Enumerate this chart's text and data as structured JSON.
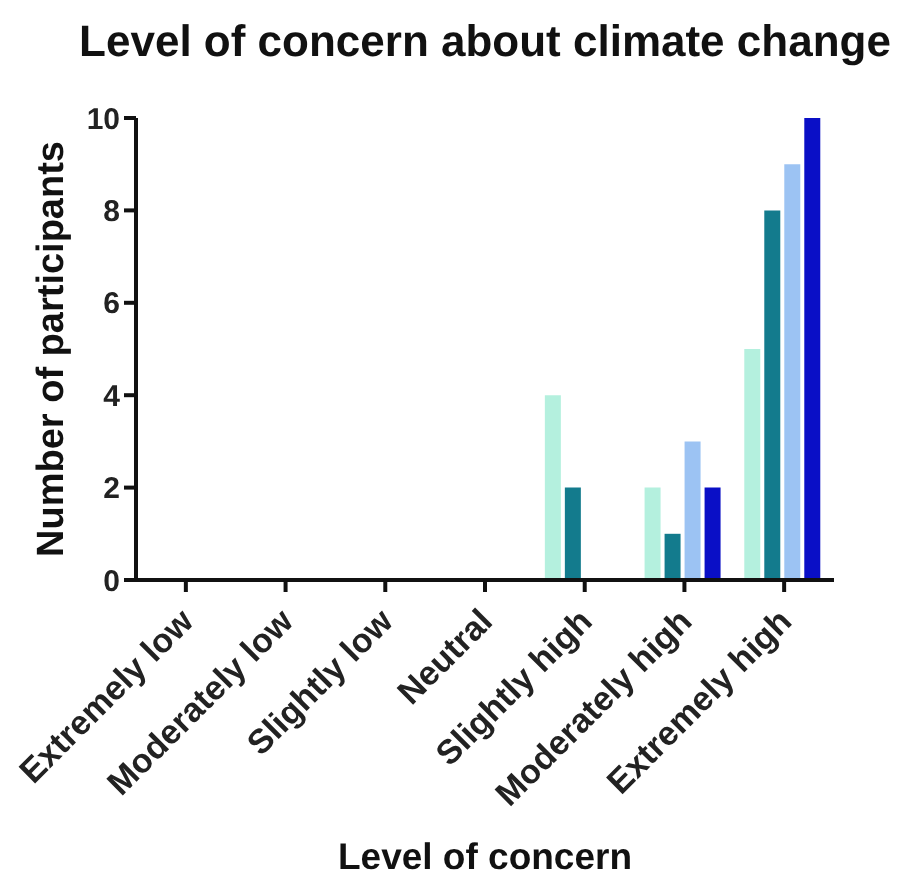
{
  "chart_data": {
    "type": "bar",
    "title": "Level of concern about climate change",
    "xlabel": "Level of concern",
    "ylabel": "Number of participants",
    "categories": [
      "Extremely low",
      "Moderately low",
      "Slightly low",
      "Neutral",
      "Slightly high",
      "Moderately high",
      "Extremely high"
    ],
    "series": [
      {
        "color": "#b4f0de",
        "values": [
          0,
          0,
          0,
          0,
          4,
          2,
          5
        ]
      },
      {
        "color": "#137b8d",
        "values": [
          0,
          0,
          0,
          0,
          2,
          1,
          8
        ]
      },
      {
        "color": "#9cc3f3",
        "values": [
          0,
          0,
          0,
          0,
          0,
          3,
          9
        ]
      },
      {
        "color": "#0a0fc6",
        "values": [
          0,
          0,
          0,
          0,
          0,
          2,
          10
        ]
      }
    ],
    "ylim": [
      0,
      10
    ],
    "yticks": [
      0,
      2,
      4,
      6,
      8,
      10
    ]
  }
}
